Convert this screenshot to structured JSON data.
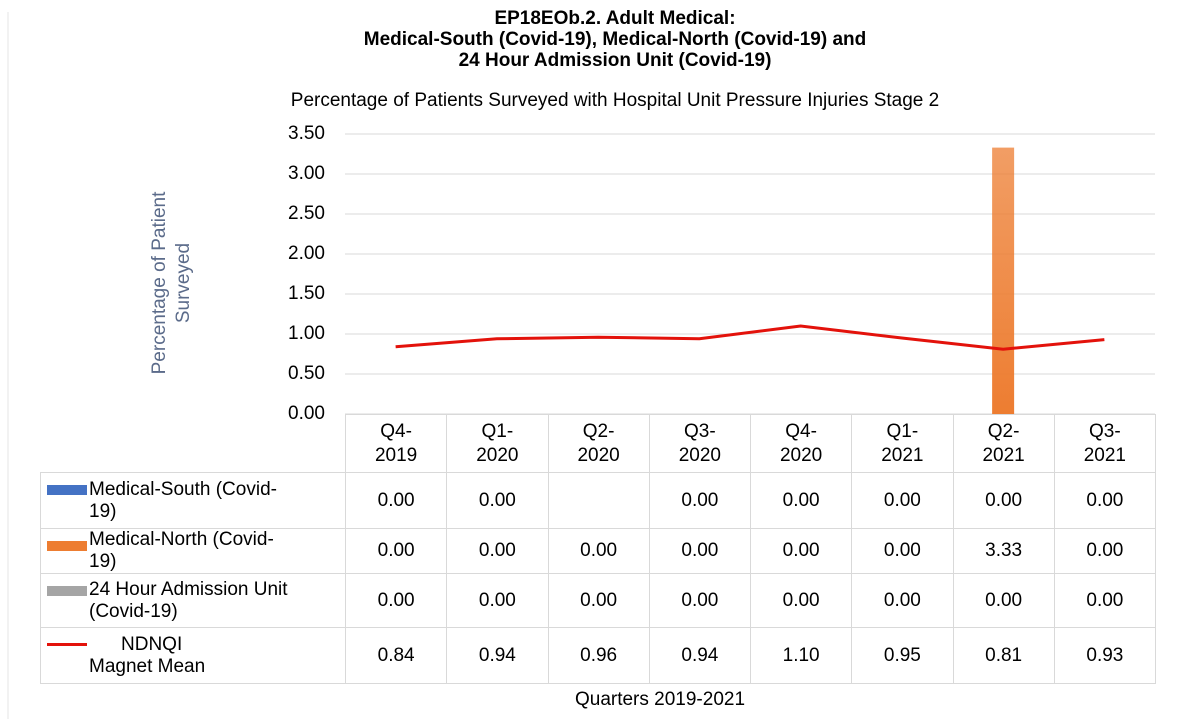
{
  "chart_data": {
    "type": "bar",
    "title": "EP18EOb.2. Adult Medical:\nMedical-South (Covid-19), Medical-North (Covid-19) and\n24 Hour Admission Unit (Covid-19)",
    "subtitle": "Percentage of Patients Surveyed with Hospital Unit Pressure Injuries Stage 2",
    "y_label": "Percentage of Patient Surveyed",
    "x_label": "Quarters 2019-2021",
    "categories": [
      "Q4-2019",
      "Q1-2020",
      "Q2-2020",
      "Q3-2020",
      "Q4-2020",
      "Q1-2021",
      "Q2-2021",
      "Q3-2021"
    ],
    "ylim": [
      0,
      3.5
    ],
    "yticks": [
      {
        "value": 0,
        "label": "0.00"
      },
      {
        "value": 0.5,
        "label": "0.50"
      },
      {
        "value": 1,
        "label": "1.00"
      },
      {
        "value": 1.5,
        "label": "1.50"
      },
      {
        "value": 2,
        "label": "2.00"
      },
      {
        "value": 2.5,
        "label": "2.50"
      },
      {
        "value": 3,
        "label": "3.00"
      },
      {
        "value": 3.5,
        "label": "3.50"
      }
    ],
    "grid": true,
    "series": [
      {
        "name": "Medical-South (Covid-19)",
        "type": "bar",
        "color": "#4472c4",
        "values": [
          0,
          0,
          null,
          0,
          0,
          0,
          0,
          0
        ],
        "value_labels": [
          "0.00",
          "0.00",
          null,
          "0.00",
          "0.00",
          "0.00",
          "0.00",
          "0.00"
        ]
      },
      {
        "name": "Medical-North (Covid-19)",
        "type": "bar",
        "color": "#ed7d31",
        "values": [
          0,
          0,
          0,
          0,
          0,
          0,
          3.33,
          0
        ],
        "value_labels": [
          "0.00",
          "0.00",
          "0.00",
          "0.00",
          "0.00",
          "0.00",
          "3.33",
          "0.00"
        ]
      },
      {
        "name": "24 Hour Admission Unit (Covid-19)",
        "type": "bar",
        "color": "#a5a5a5",
        "values": [
          0,
          0,
          0,
          0,
          0,
          0,
          0,
          0
        ],
        "value_labels": [
          "0.00",
          "0.00",
          "0.00",
          "0.00",
          "0.00",
          "0.00",
          "0.00",
          "0.00"
        ]
      },
      {
        "name": "NDNQI Magnet Mean",
        "type": "line",
        "color": "#e3120b",
        "values": [
          0.84,
          0.94,
          0.96,
          0.94,
          1.1,
          0.95,
          0.81,
          0.93
        ],
        "value_labels": [
          "0.84",
          "0.94",
          "0.96",
          "0.94",
          "1.10",
          "0.95",
          "0.81",
          "0.93"
        ]
      }
    ]
  }
}
